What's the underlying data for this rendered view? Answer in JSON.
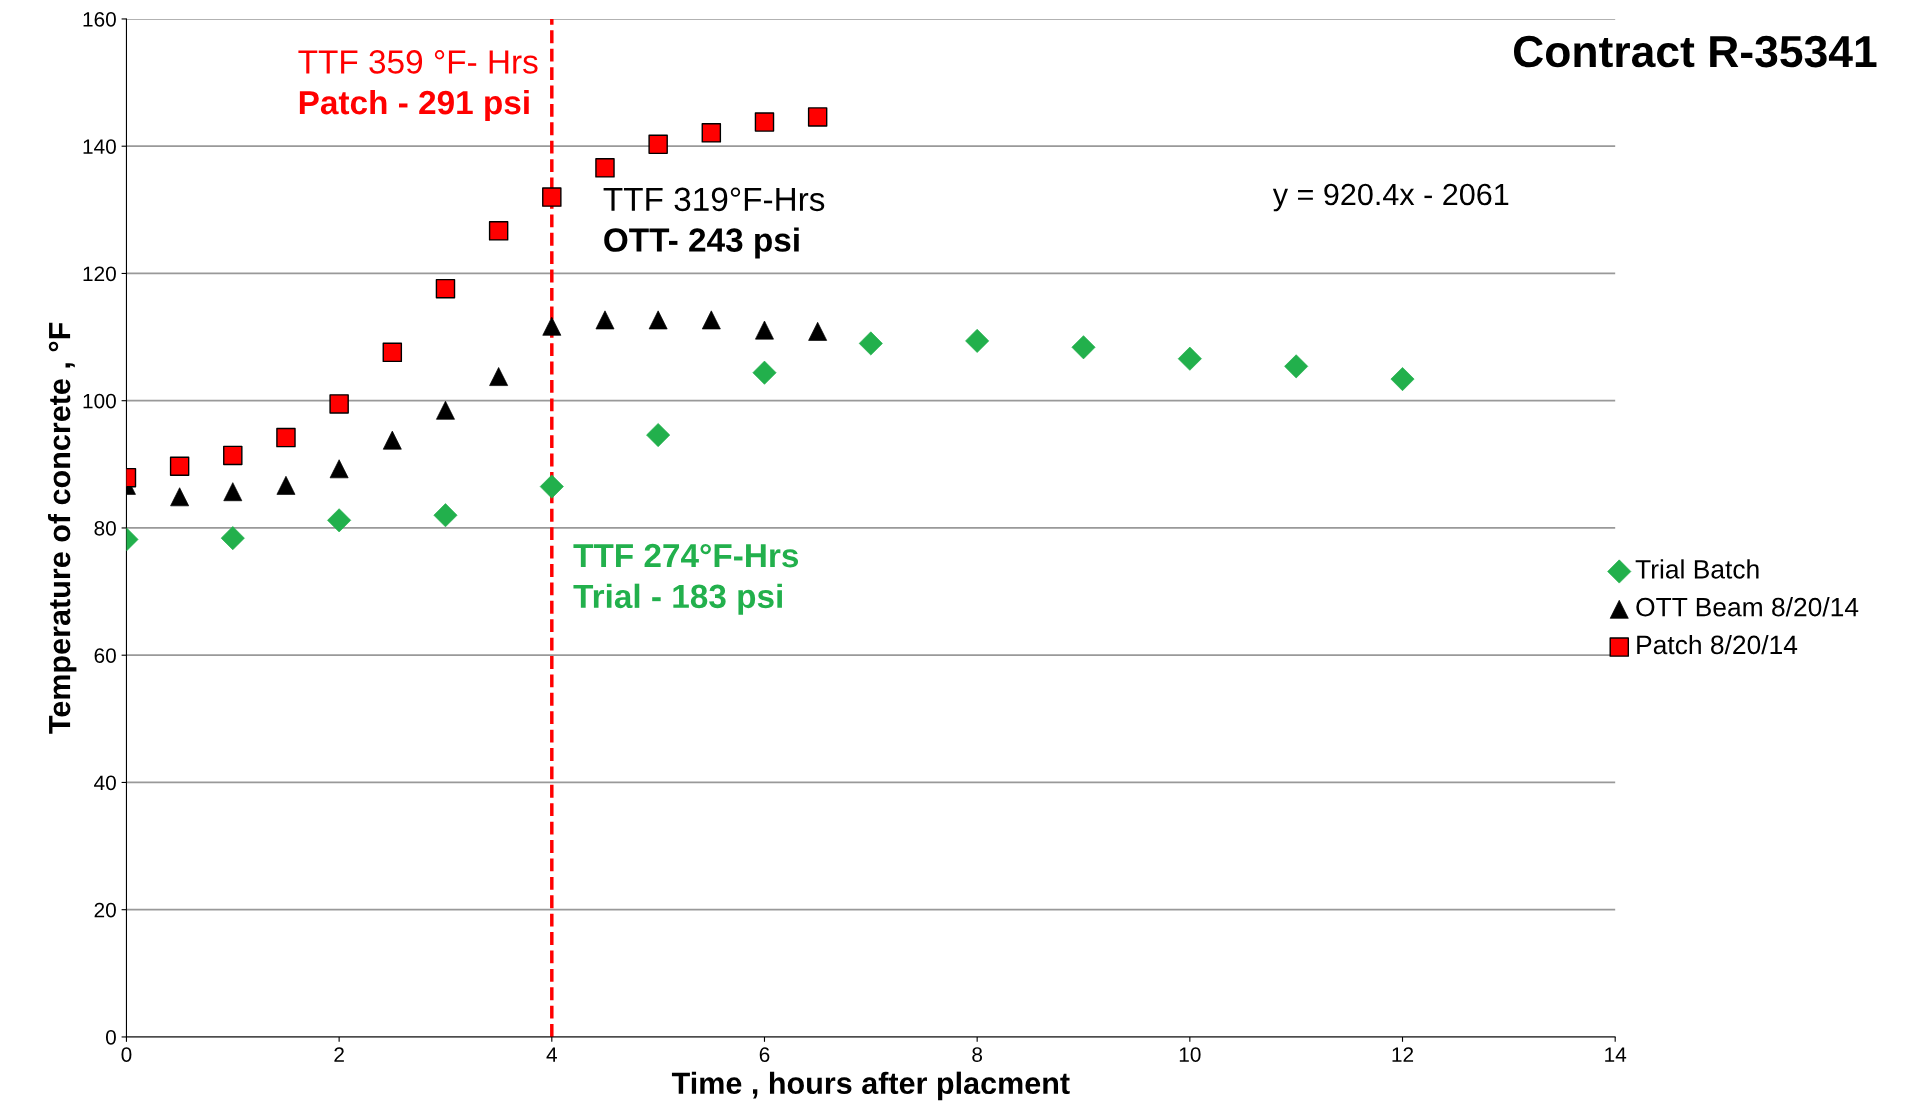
{
  "chart_data": {
    "type": "scatter",
    "title": "Contract R-35341",
    "xlabel": "Time , hours after placment",
    "ylabel": "Temperature of concrete , °F",
    "xlim": [
      0,
      14
    ],
    "xticks": [
      0,
      2,
      4,
      6,
      8,
      10,
      12,
      14
    ],
    "ylim": [
      0,
      160
    ],
    "yticks": [
      0,
      20,
      40,
      60,
      80,
      100,
      120,
      140,
      160
    ],
    "grid": "y",
    "legend": "right",
    "series": [
      {
        "name": "Trial Batch",
        "color": "#22b04c",
        "marker": "diamond",
        "x": [
          0,
          1,
          2,
          3,
          4,
          5,
          6,
          7,
          8,
          9,
          10,
          11,
          12
        ],
        "values": [
          78.2,
          78.4,
          81.2,
          82,
          86.5,
          94.6,
          104.4,
          109,
          109.4,
          108.4,
          106.6,
          105.4,
          103.4
        ]
      },
      {
        "name": "OTT Beam 8/20/14",
        "color": "#000000",
        "marker": "triangle",
        "x": [
          0,
          0.5,
          1,
          1.5,
          2,
          2.5,
          3,
          3.5,
          4,
          4.5,
          5,
          5.5,
          6,
          6.5
        ],
        "values": [
          86.7,
          84.9,
          85.7,
          86.7,
          89.3,
          93.8,
          98.5,
          103.8,
          111.7,
          112.7,
          112.7,
          112.7,
          111.1,
          110.9
        ]
      },
      {
        "name": "Patch 8/20/14",
        "color": "#ff0000",
        "marker": "square",
        "x": [
          0,
          0.5,
          1,
          1.5,
          2,
          2.5,
          3,
          3.5,
          4,
          4.5,
          5,
          5.5,
          6,
          6.5
        ],
        "values": [
          87.9,
          89.7,
          91.4,
          94.2,
          99.5,
          107.6,
          117.6,
          126.7,
          132,
          136.6,
          140.3,
          142.1,
          143.8,
          144.6
        ]
      }
    ],
    "ref_lines": [
      {
        "axis": "x",
        "value": 4,
        "color": "#ff0000",
        "line_style": "dashed"
      }
    ],
    "annotations": [
      "TTF 359 °F- Hrs",
      "Patch - 291 psi",
      "TTF 319°F-Hrs",
      "OTT- 243 psi",
      "TTF 274°F-Hrs",
      "Trial - 183 psi",
      "y = 920.4x - 2061"
    ]
  }
}
